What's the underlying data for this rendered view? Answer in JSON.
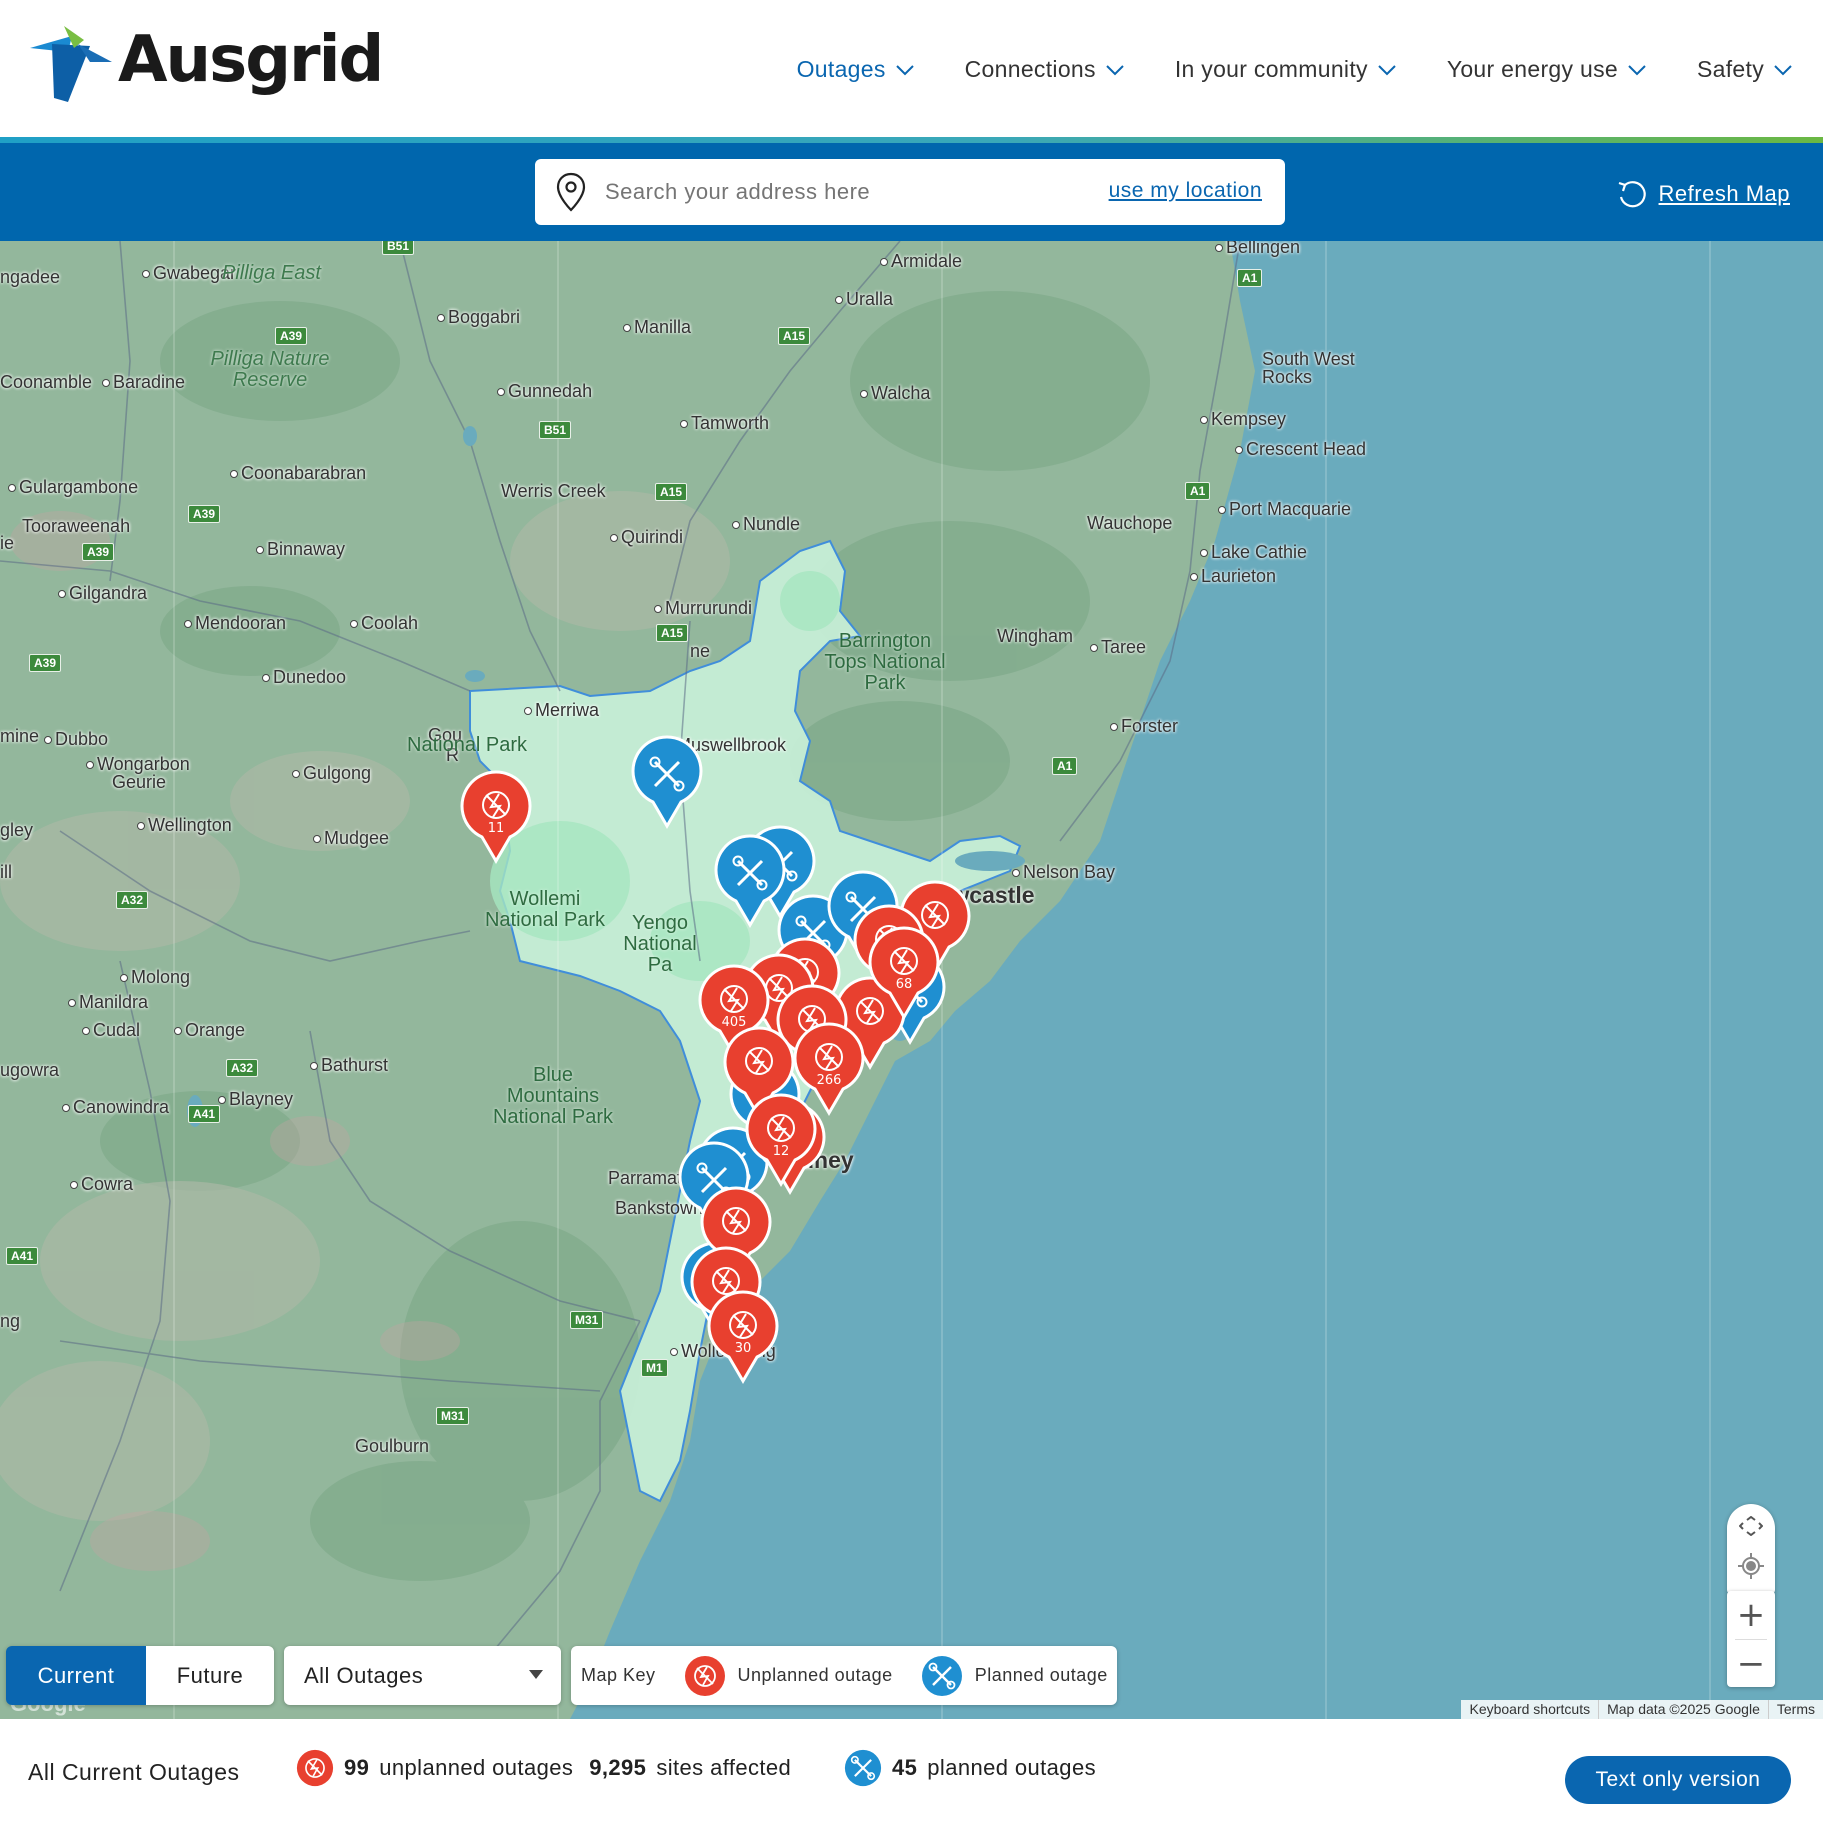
{
  "brand": {
    "name": "Ausgrid"
  },
  "nav": [
    {
      "label": "Outages",
      "active": true
    },
    {
      "label": "Connections",
      "active": false
    },
    {
      "label": "In your community",
      "active": false
    },
    {
      "label": "Your energy use",
      "active": false
    },
    {
      "label": "Safety",
      "active": false
    }
  ],
  "search": {
    "placeholder": "Search your address here",
    "use_location": "use my location",
    "refresh": "Refresh Map"
  },
  "map": {
    "places": [
      "Bellingen",
      "Armidale",
      "Uralla",
      "Gwabegar",
      "Boggabri",
      "Manilla",
      "Gunnedah",
      "Walcha",
      "Tamworth",
      "Baradine",
      "Coonamble",
      "Coonabarabran",
      "Werris Creek",
      "Kempsey",
      "Crescent Head",
      "Gulargambone",
      "Tooraweenah",
      "Quirindi",
      "Nundle",
      "Wauchope",
      "Port Macquarie",
      "Lake Cathie",
      "Laurieton",
      "Binnaway",
      "Gilgandra",
      "Murrurundi",
      "Mendooran",
      "Coolah",
      "Wingham",
      "Taree",
      "Dunedoo",
      "Merriwa",
      "Forster",
      "Muswellbrook",
      "Dubbo",
      "Wongarbon",
      "Geurie",
      "Gulgong",
      "Wellington",
      "Mudgee",
      "Nelson Bay",
      "Molong",
      "Manildra",
      "Cudal",
      "Orange",
      "Bathurst",
      "Blayney",
      "Canowindra",
      "Cowra",
      "Parramatta",
      "Bankstown",
      "Wollongong",
      "Goulburn",
      "South West Rocks",
      "ngadee",
      "gley",
      "ugowra",
      "mine",
      "ill",
      "ng",
      "ie",
      "ne",
      "Gou",
      "R"
    ],
    "parks": [
      "Pilliga East",
      "Pilliga Nature Reserve",
      "Barrington Tops National Park",
      "National Park",
      "Wollemi National Park",
      "Yengo National Pa",
      "Blue Mountains National Park"
    ],
    "cities": [
      "Newcastle",
      "dney"
    ],
    "roads": [
      "B51",
      "A1",
      "A15",
      "A39",
      "B51",
      "A15",
      "A39",
      "A1",
      "A39",
      "A15",
      "A39",
      "A1",
      "A32",
      "A32",
      "A41",
      "A41",
      "M31",
      "M1",
      "M31"
    ],
    "markers": {
      "planned": [
        {},
        {},
        {},
        {},
        {},
        {},
        {},
        {},
        {},
        {}
      ],
      "unplanned_counts": [
        "11",
        "405",
        "68",
        "266",
        "12",
        "30",
        "",
        "",
        "",
        "",
        "",
        "",
        "",
        "",
        "",
        ""
      ]
    },
    "controls": {
      "zoom_in": "+",
      "zoom_out": "−"
    },
    "attribution": [
      "Keyboard shortcuts",
      "Map data ©2025 Google",
      "Terms"
    ],
    "google": "Google"
  },
  "filters": {
    "current": "Current",
    "future": "Future",
    "outage_type": "All Outages",
    "map_key": "Map Key",
    "unplanned_label": "Unplanned outage",
    "planned_label": "Planned outage"
  },
  "summary": {
    "title": "All Current Outages",
    "unplanned_count": "99",
    "unplanned_text": "unplanned outages",
    "sites_count": "9,295",
    "sites_text": "sites affected",
    "planned_count": "45",
    "planned_text": "planned outages",
    "text_only": "Text only version"
  },
  "colors": {
    "brand_blue": "#0066ad",
    "unplanned": "#e8402f",
    "planned": "#1f8fd1",
    "service_area": "#c8f0d8",
    "sea": "#6aabbd"
  }
}
